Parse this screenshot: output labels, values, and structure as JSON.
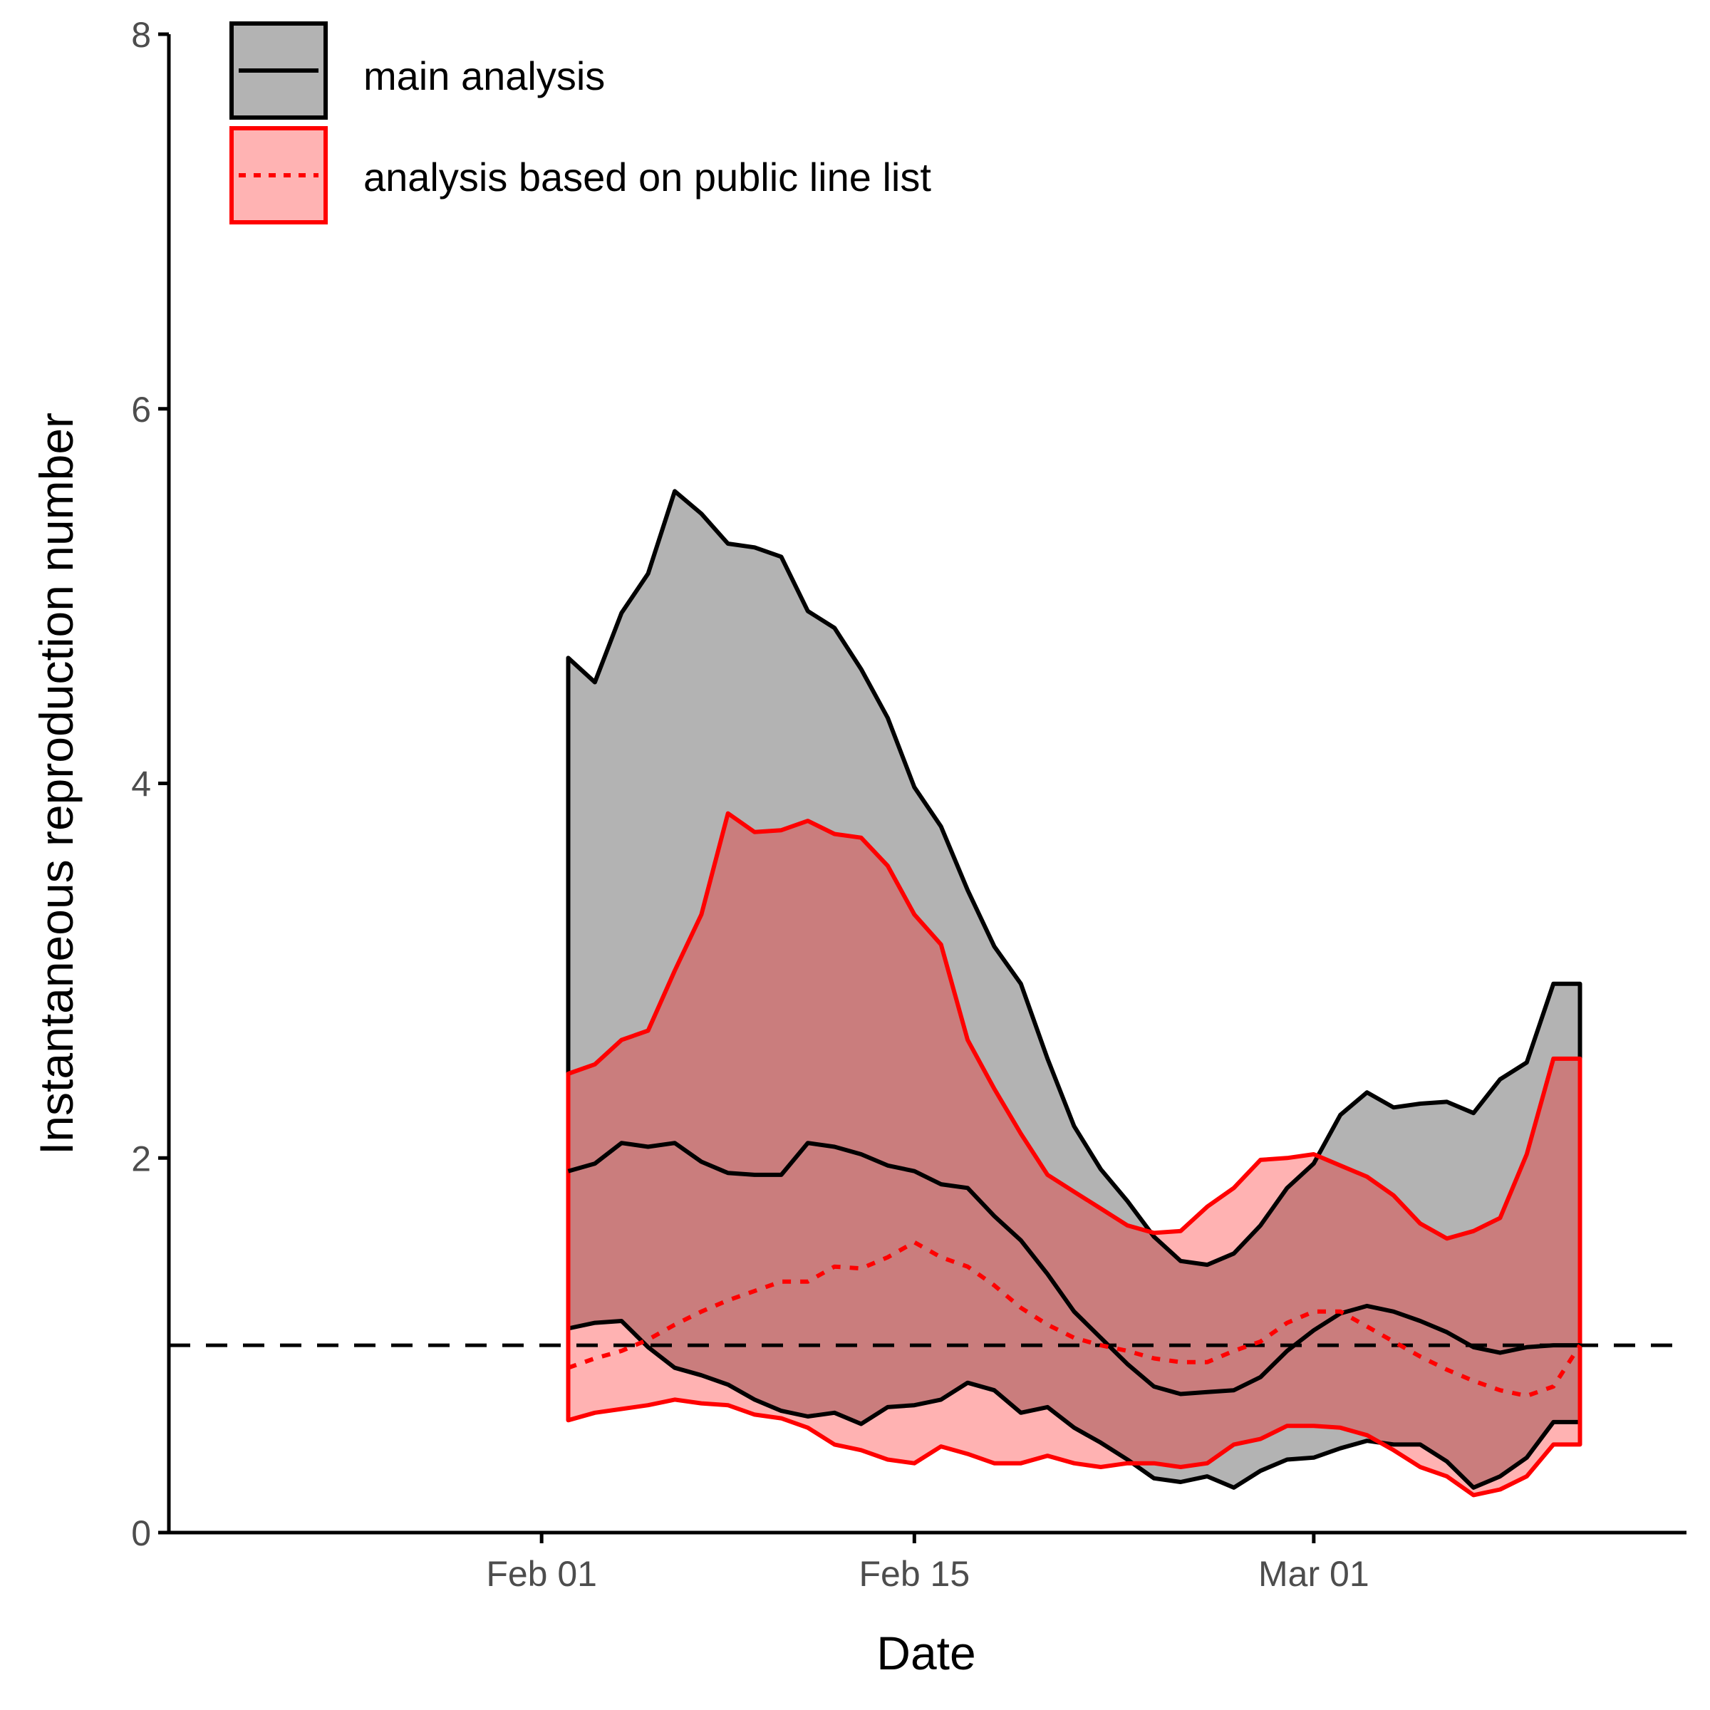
{
  "chart_data": {
    "type": "area",
    "xlabel": "Date",
    "ylabel": "Instantaneous reproduction number",
    "x_ticks": [
      {
        "date": "2020-02-01",
        "label": "Feb 01"
      },
      {
        "date": "2020-02-15",
        "label": "Feb 15"
      },
      {
        "date": "2020-03-01",
        "label": "Mar 01"
      }
    ],
    "xlim": [
      "2020-01-18",
      "2020-03-15"
    ],
    "ylim": [
      0,
      8
    ],
    "y_ticks": [
      0,
      2,
      4,
      6,
      8
    ],
    "grid": false,
    "legend_position": "top-left",
    "reference_line": {
      "y": 1,
      "style": "dashed",
      "color": "#000000"
    },
    "dates": [
      "2020-02-02",
      "2020-02-03",
      "2020-02-04",
      "2020-02-05",
      "2020-02-06",
      "2020-02-07",
      "2020-02-08",
      "2020-02-09",
      "2020-02-10",
      "2020-02-11",
      "2020-02-12",
      "2020-02-13",
      "2020-02-14",
      "2020-02-15",
      "2020-02-16",
      "2020-02-17",
      "2020-02-18",
      "2020-02-19",
      "2020-02-20",
      "2020-02-21",
      "2020-02-22",
      "2020-02-23",
      "2020-02-24",
      "2020-02-25",
      "2020-02-26",
      "2020-02-27",
      "2020-02-28",
      "2020-02-29",
      "2020-03-01",
      "2020-03-02",
      "2020-03-03",
      "2020-03-04",
      "2020-03-05",
      "2020-03-06",
      "2020-03-07",
      "2020-03-08",
      "2020-03-09",
      "2020-03-10",
      "2020-03-11"
    ],
    "series": [
      {
        "name": "main analysis",
        "line_style": "solid",
        "line_color": "#000000",
        "fill_color": "#b3b3b3",
        "median": [
          1.93,
          1.97,
          2.08,
          2.06,
          2.08,
          1.98,
          1.92,
          1.91,
          1.91,
          2.08,
          2.06,
          2.02,
          1.96,
          1.93,
          1.86,
          1.84,
          1.69,
          1.56,
          1.38,
          1.18,
          1.04,
          0.9,
          0.78,
          0.74,
          0.75,
          0.76,
          0.83,
          0.97,
          1.08,
          1.17,
          1.21,
          1.18,
          1.13,
          1.07,
          0.99,
          0.96,
          0.99,
          1.0,
          1.0
        ],
        "lower": [
          1.09,
          1.12,
          1.13,
          0.99,
          0.88,
          0.84,
          0.79,
          0.71,
          0.65,
          0.62,
          0.64,
          0.58,
          0.67,
          0.68,
          0.71,
          0.8,
          0.76,
          0.64,
          0.67,
          0.56,
          0.48,
          0.39,
          0.29,
          0.27,
          0.3,
          0.24,
          0.33,
          0.39,
          0.4,
          0.45,
          0.49,
          0.47,
          0.47,
          0.38,
          0.24,
          0.3,
          0.4,
          0.59,
          0.59
        ],
        "upper": [
          4.67,
          4.54,
          4.91,
          5.12,
          5.56,
          5.44,
          5.28,
          5.26,
          5.21,
          4.92,
          4.83,
          4.61,
          4.35,
          3.98,
          3.77,
          3.43,
          3.13,
          2.93,
          2.53,
          2.17,
          1.94,
          1.77,
          1.58,
          1.45,
          1.43,
          1.49,
          1.64,
          1.84,
          1.97,
          2.23,
          2.35,
          2.27,
          2.29,
          2.3,
          2.24,
          2.42,
          2.51,
          2.93,
          2.93
        ]
      },
      {
        "name": "analysis based on public line list",
        "line_style": "dotted",
        "line_color": "#ff0000",
        "fill_color": "#ff0000",
        "median": [
          0.88,
          0.93,
          0.97,
          1.03,
          1.11,
          1.18,
          1.24,
          1.29,
          1.34,
          1.34,
          1.42,
          1.41,
          1.47,
          1.55,
          1.47,
          1.42,
          1.32,
          1.2,
          1.11,
          1.04,
          1.0,
          0.97,
          0.93,
          0.91,
          0.91,
          0.97,
          1.02,
          1.12,
          1.18,
          1.18,
          1.1,
          1.02,
          0.94,
          0.87,
          0.81,
          0.76,
          0.73,
          0.78,
          1.0
        ],
        "lower": [
          0.6,
          0.64,
          0.66,
          0.68,
          0.71,
          0.69,
          0.68,
          0.63,
          0.61,
          0.56,
          0.47,
          0.44,
          0.39,
          0.37,
          0.46,
          0.42,
          0.37,
          0.37,
          0.41,
          0.37,
          0.35,
          0.37,
          0.37,
          0.35,
          0.37,
          0.47,
          0.5,
          0.57,
          0.57,
          0.56,
          0.52,
          0.44,
          0.35,
          0.3,
          0.2,
          0.23,
          0.3,
          0.47,
          0.47
        ],
        "upper": [
          2.45,
          2.5,
          2.63,
          2.68,
          3.0,
          3.3,
          3.84,
          3.74,
          3.75,
          3.8,
          3.73,
          3.71,
          3.56,
          3.3,
          3.14,
          2.63,
          2.37,
          2.13,
          1.91,
          1.82,
          1.73,
          1.64,
          1.6,
          1.61,
          1.74,
          1.84,
          1.99,
          2.0,
          2.02,
          1.96,
          1.9,
          1.8,
          1.65,
          1.57,
          1.61,
          1.68,
          2.02,
          2.53,
          2.53
        ]
      }
    ]
  }
}
